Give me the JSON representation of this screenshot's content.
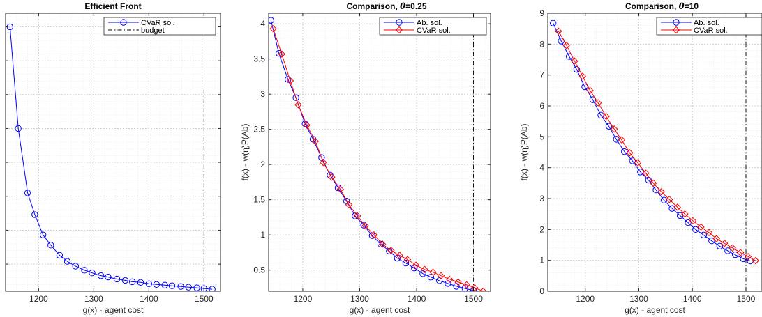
{
  "chart_data": [
    {
      "type": "line",
      "title": "Efficient Front",
      "xlabel": "g(x) - agent cost",
      "ylabel": "",
      "xlim": [
        1140,
        1530
      ],
      "ylim": [
        0.1,
        4.2
      ],
      "xticks": [
        1200,
        1300,
        1400,
        1500
      ],
      "yticks": [],
      "grid": true,
      "minor_grid": true,
      "legend": "top-right",
      "series": [
        {
          "name": "CVaR sol.",
          "color": "#0000ff",
          "marker": "circle",
          "line": "solid",
          "x": [
            1148,
            1163,
            1180,
            1193,
            1208,
            1222,
            1238,
            1252,
            1267,
            1283,
            1297,
            1313,
            1326,
            1342,
            1357,
            1370,
            1385,
            1400,
            1414,
            1429,
            1442,
            1458,
            1472,
            1487,
            1500,
            1515
          ],
          "y": [
            4.0,
            2.5,
            1.55,
            1.23,
            0.93,
            0.78,
            0.63,
            0.54,
            0.47,
            0.41,
            0.37,
            0.33,
            0.31,
            0.28,
            0.26,
            0.24,
            0.23,
            0.21,
            0.2,
            0.19,
            0.18,
            0.17,
            0.16,
            0.15,
            0.14,
            0.13
          ]
        },
        {
          "name": "budget",
          "color": "#000000",
          "marker": "none",
          "line": "dashdot",
          "x": [
            1500,
            1500
          ],
          "y": [
            0.1,
            3.1
          ]
        }
      ]
    },
    {
      "type": "line",
      "title": "Comparison, θ=0.25",
      "title_prefix": "Comparison, ",
      "title_symbol": "θ",
      "title_suffix": "=0.25",
      "xlabel": "g(x) - agent cost",
      "ylabel": "f(x) - w(η)P(Ab)",
      "xlim": [
        1140,
        1530
      ],
      "ylim": [
        0.2,
        4.15
      ],
      "xticks": [
        1200,
        1300,
        1400,
        1500
      ],
      "yticks": [
        0.5,
        1,
        1.5,
        2,
        2.5,
        3,
        3.5,
        4
      ],
      "grid": true,
      "minor_grid": true,
      "legend": "top-right",
      "series": [
        {
          "name": "Ab. sol.",
          "color": "#0000ff",
          "marker": "circle",
          "line": "solid",
          "x": [
            1144,
            1158,
            1174,
            1188,
            1204,
            1218,
            1233,
            1248,
            1262,
            1277,
            1292,
            1307,
            1322,
            1337,
            1352,
            1366,
            1381,
            1396,
            1411,
            1425,
            1440,
            1455,
            1470,
            1485,
            1500
          ],
          "y": [
            4.05,
            3.58,
            3.21,
            2.95,
            2.58,
            2.36,
            2.1,
            1.85,
            1.67,
            1.48,
            1.27,
            1.14,
            0.99,
            0.87,
            0.77,
            0.67,
            0.6,
            0.53,
            0.45,
            0.4,
            0.35,
            0.31,
            0.27,
            0.24,
            0.21
          ]
        },
        {
          "name": "CVaR sol.",
          "color": "#ff0000",
          "marker": "diamond",
          "line": "solid",
          "x": [
            1148,
            1163,
            1178,
            1192,
            1207,
            1222,
            1236,
            1251,
            1266,
            1281,
            1296,
            1310,
            1325,
            1340,
            1355,
            1370,
            1384,
            1399,
            1414,
            1429,
            1443,
            1458,
            1473,
            1488,
            1502,
            1517
          ],
          "y": [
            3.93,
            3.57,
            3.19,
            2.85,
            2.56,
            2.33,
            2.03,
            1.82,
            1.65,
            1.43,
            1.27,
            1.13,
            1.0,
            0.87,
            0.78,
            0.71,
            0.65,
            0.57,
            0.51,
            0.47,
            0.42,
            0.37,
            0.33,
            0.29,
            0.25,
            0.2
          ]
        },
        {
          "name": "",
          "color": "#000000",
          "marker": "none",
          "line": "dashdot",
          "x": [
            1500,
            1500
          ],
          "y": [
            0.2,
            4.15
          ]
        }
      ]
    },
    {
      "type": "line",
      "title": "Comparison, θ=10",
      "title_prefix": "Comparison, ",
      "title_symbol": "θ",
      "title_suffix": "=10",
      "xlabel": "g(x) - agent cost",
      "ylabel": "f(x) - w(η)P(Ab)",
      "xlim": [
        1130,
        1530
      ],
      "ylim": [
        0,
        9
      ],
      "xticks": [
        1200,
        1300,
        1400,
        1500
      ],
      "yticks": [
        0,
        1,
        2,
        3,
        4,
        5,
        6,
        7,
        8,
        9
      ],
      "grid": true,
      "minor_grid": true,
      "legend": "top-right",
      "series": [
        {
          "name": "Ab. sol.",
          "color": "#0000ff",
          "marker": "circle",
          "line": "solid",
          "x": [
            1140,
            1155,
            1170,
            1184,
            1199,
            1214,
            1229,
            1244,
            1258,
            1273,
            1288,
            1303,
            1318,
            1332,
            1347,
            1362,
            1377,
            1392,
            1406,
            1421,
            1436,
            1451,
            1466,
            1480,
            1495,
            1508
          ],
          "y": [
            8.68,
            8.1,
            7.6,
            7.18,
            6.62,
            6.2,
            5.7,
            5.34,
            4.92,
            4.52,
            4.22,
            3.86,
            3.6,
            3.28,
            2.95,
            2.68,
            2.45,
            2.22,
            2.0,
            1.82,
            1.63,
            1.46,
            1.31,
            1.18,
            1.05,
            0.98
          ]
        },
        {
          "name": "CVaR sol.",
          "color": "#ff0000",
          "marker": "diamond",
          "line": "solid",
          "x": [
            1150,
            1165,
            1180,
            1195,
            1209,
            1224,
            1239,
            1254,
            1268,
            1283,
            1298,
            1313,
            1327,
            1342,
            1357,
            1372,
            1386,
            1401,
            1416,
            1431,
            1445,
            1460,
            1475,
            1490,
            1504,
            1518
          ],
          "y": [
            8.42,
            7.96,
            7.45,
            6.96,
            6.5,
            6.1,
            5.66,
            5.25,
            4.9,
            4.48,
            4.16,
            3.82,
            3.5,
            3.22,
            2.97,
            2.72,
            2.5,
            2.28,
            2.08,
            1.9,
            1.7,
            1.55,
            1.4,
            1.25,
            1.12,
            0.99
          ]
        },
        {
          "name": "",
          "color": "#000000",
          "marker": "none",
          "line": "dashdot",
          "x": [
            1500,
            1500
          ],
          "y": [
            0,
            9
          ]
        }
      ]
    }
  ]
}
